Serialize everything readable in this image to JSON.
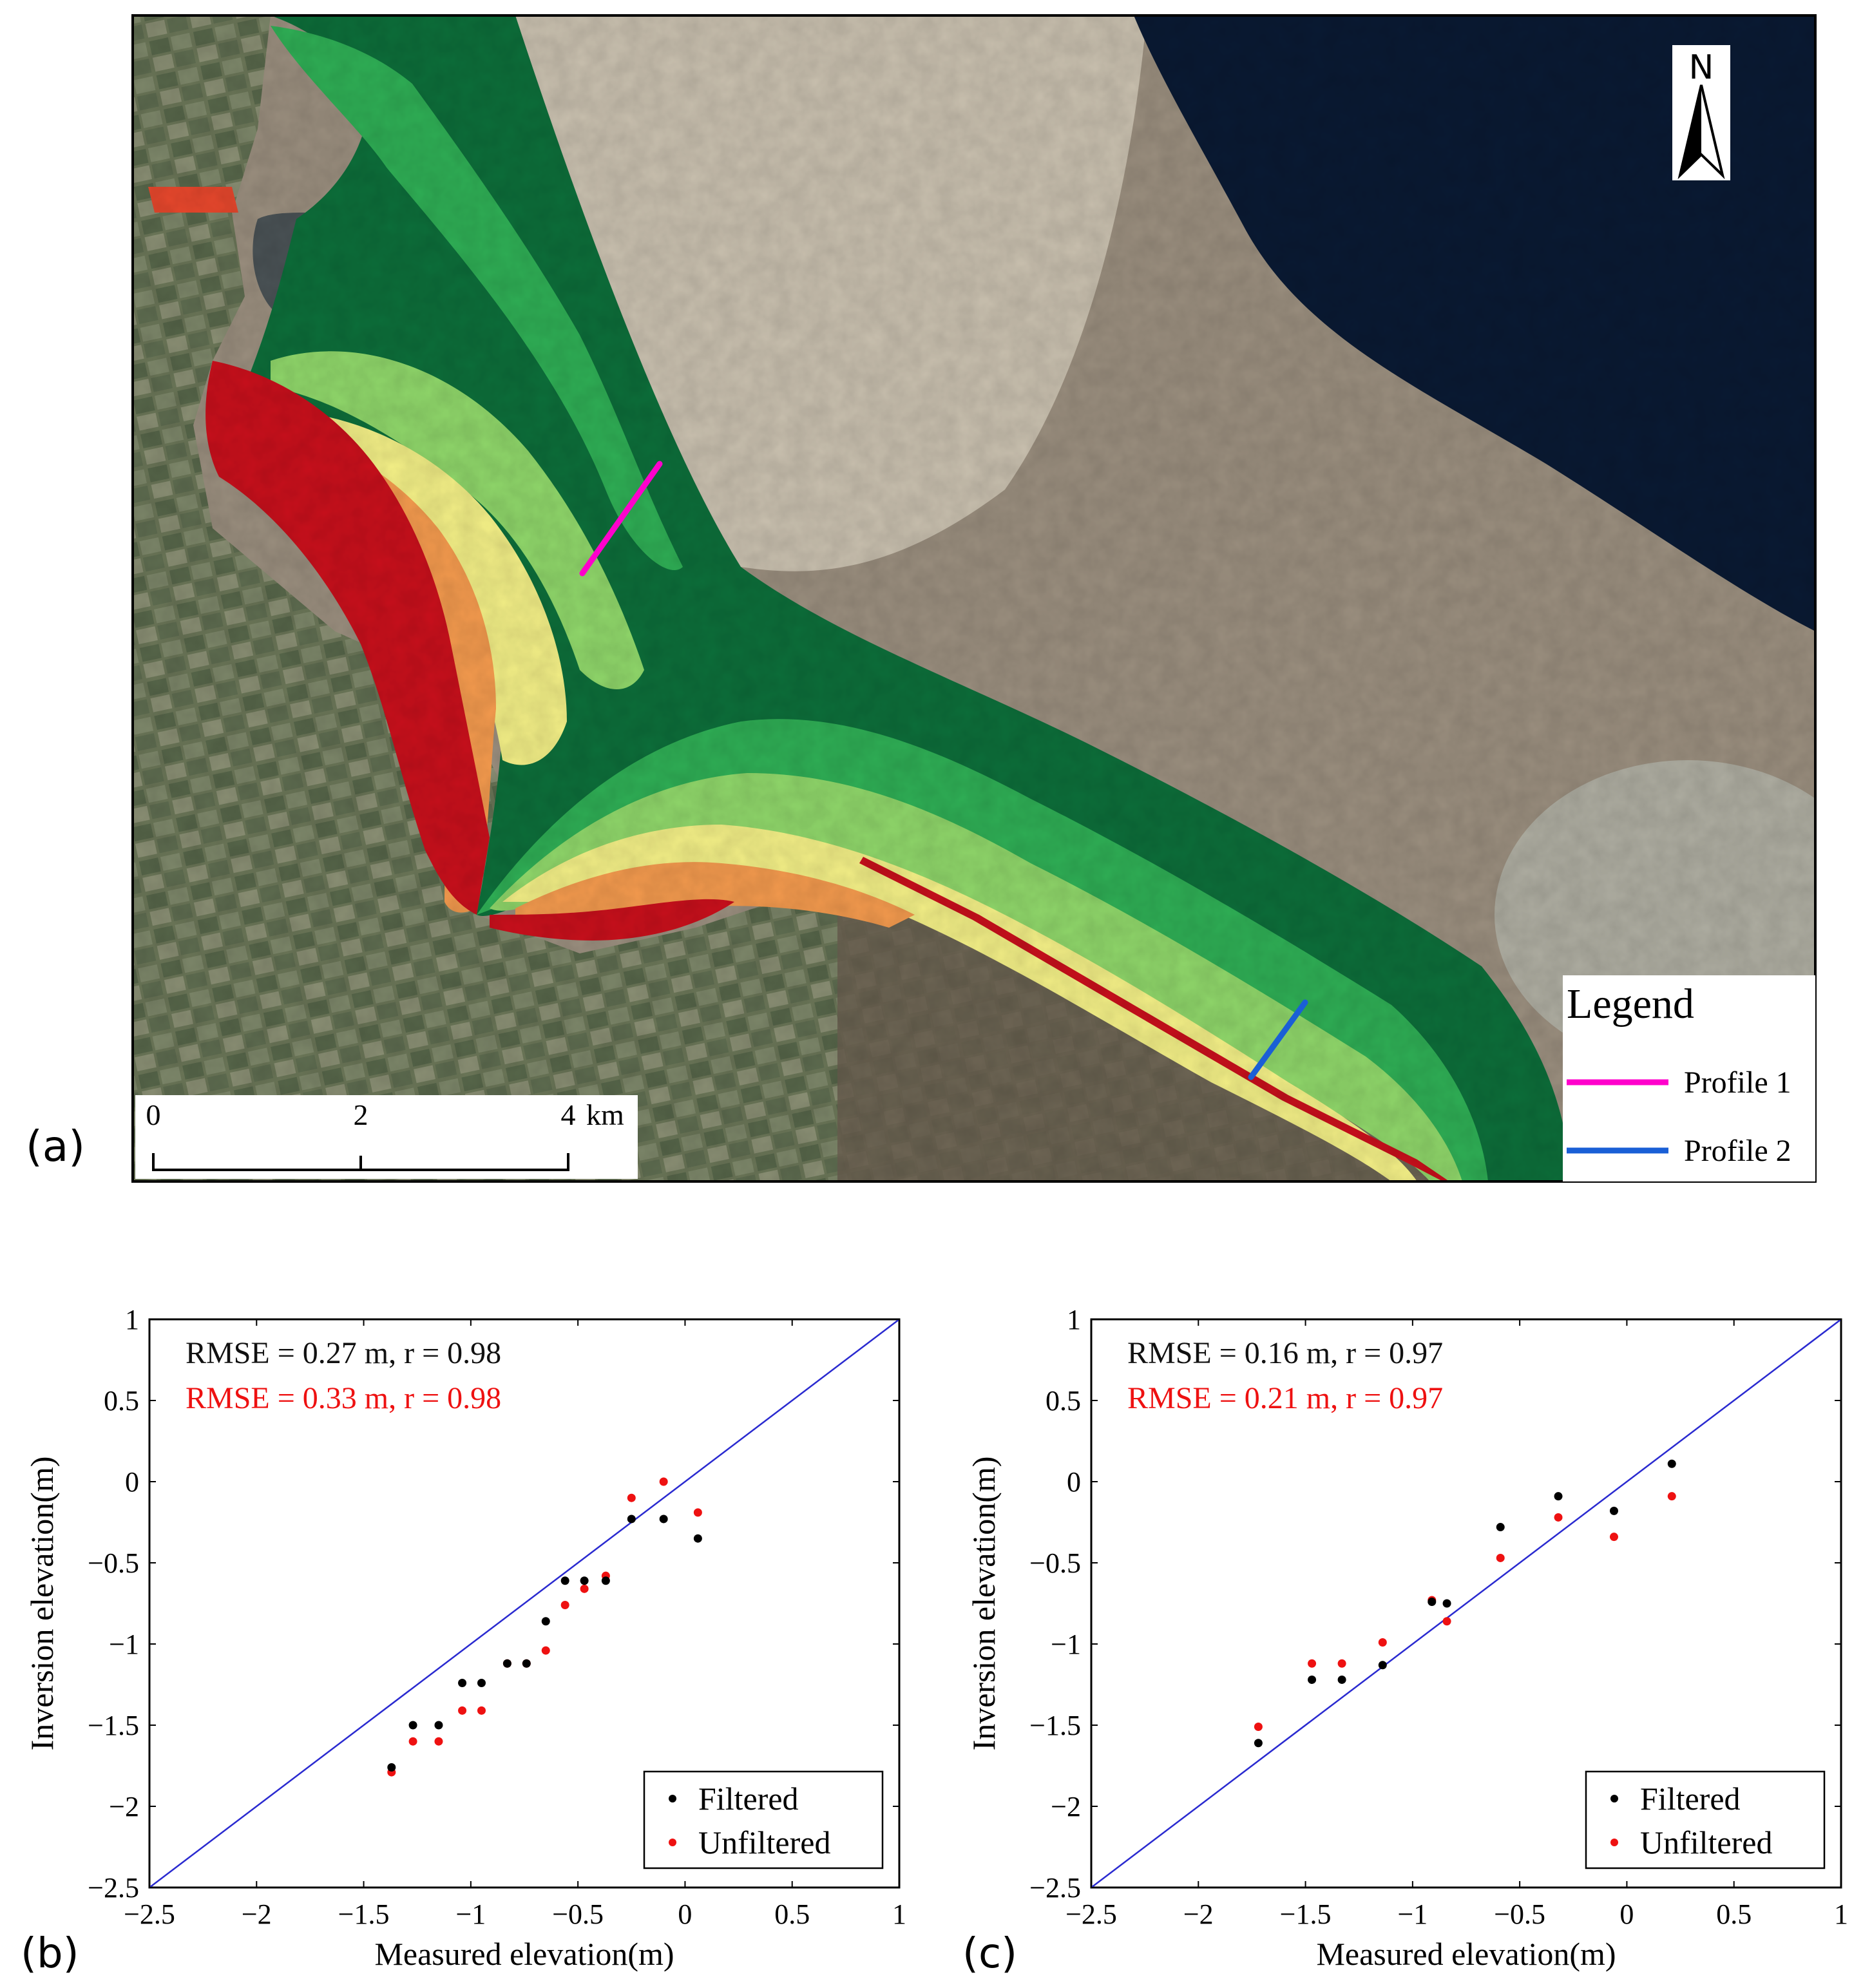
{
  "panel_a": {
    "label": "(a)",
    "north_arrow_letter": "N",
    "scale_bar": {
      "ticks": [
        "0",
        "2",
        "4"
      ],
      "unit": "km"
    },
    "legend": {
      "title": "Legend",
      "items": [
        {
          "label": "Profile 1",
          "color": "#ff00cc"
        },
        {
          "label": "Profile 2",
          "color": "#1a5fd6"
        }
      ]
    },
    "colors": {
      "sea_dark": "#0a1a33",
      "tidal_flat": "#c8bfae",
      "turbid_water": "#9a8e7e",
      "land": "#6f7a5c",
      "elev_dark_green": "#0d6e3a",
      "elev_green": "#2fae55",
      "elev_light_green": "#8fd66a",
      "elev_yellow": "#f2ee86",
      "elev_orange": "#f39a4e",
      "elev_red_orange": "#e8482d",
      "elev_red": "#c8101c"
    }
  },
  "chart_data": [
    {
      "panel_label": "(b)",
      "type": "scatter",
      "xlabel": "Measured elevation(m)",
      "ylabel": "Inversion elevation(m)",
      "xlim": [
        -2.5,
        1
      ],
      "ylim": [
        -2.5,
        1
      ],
      "xticks": [
        "−2.5",
        "−2",
        "−1.5",
        "−1",
        "−0.5",
        "0",
        "0.5",
        "1"
      ],
      "yticks": [
        "−2.5",
        "−2",
        "−1.5",
        "−1",
        "−0.5",
        "0",
        "0.5",
        "1"
      ],
      "reference_line": {
        "from": [
          -2.5,
          -2.5
        ],
        "to": [
          1,
          1
        ],
        "color": "#2a2ad0"
      },
      "annotations": [
        {
          "text": "RMSE = 0.27 m, r = 0.98",
          "color": "#111111"
        },
        {
          "text": "RMSE = 0.33 m, r = 0.98",
          "color": "#ee1111"
        }
      ],
      "legend": {
        "position": "bottom-right"
      },
      "series": [
        {
          "name": "Filtered",
          "color": "#000000",
          "points": [
            [
              -1.37,
              -1.76
            ],
            [
              -1.27,
              -1.5
            ],
            [
              -1.15,
              -1.5
            ],
            [
              -1.04,
              -1.24
            ],
            [
              -0.95,
              -1.24
            ],
            [
              -0.83,
              -1.12
            ],
            [
              -0.74,
              -1.12
            ],
            [
              -0.65,
              -0.86
            ],
            [
              -0.56,
              -0.61
            ],
            [
              -0.47,
              -0.61
            ],
            [
              -0.37,
              -0.61
            ],
            [
              -0.25,
              -0.23
            ],
            [
              -0.1,
              -0.23
            ],
            [
              0.06,
              -0.35
            ]
          ]
        },
        {
          "name": "Unfiltered",
          "color": "#ee1111",
          "points": [
            [
              -1.37,
              -1.79
            ],
            [
              -1.27,
              -1.6
            ],
            [
              -1.15,
              -1.6
            ],
            [
              -1.04,
              -1.41
            ],
            [
              -0.95,
              -1.41
            ],
            [
              -0.83,
              -1.12
            ],
            [
              -0.74,
              -1.12
            ],
            [
              -0.65,
              -1.04
            ],
            [
              -0.56,
              -0.76
            ],
            [
              -0.47,
              -0.66
            ],
            [
              -0.37,
              -0.58
            ],
            [
              -0.25,
              -0.1
            ],
            [
              -0.1,
              0.0
            ],
            [
              0.06,
              -0.19
            ]
          ]
        }
      ]
    },
    {
      "panel_label": "(c)",
      "type": "scatter",
      "xlabel": "Measured elevation(m)",
      "ylabel": "Inversion elevation(m)",
      "xlim": [
        -2.5,
        1
      ],
      "ylim": [
        -2.5,
        1
      ],
      "xticks": [
        "−2.5",
        "−2",
        "−1.5",
        "−1",
        "−0.5",
        "0",
        "0.5",
        "1"
      ],
      "yticks": [
        "−2.5",
        "−2",
        "−1.5",
        "−1",
        "−0.5",
        "0",
        "0.5",
        "1"
      ],
      "reference_line": {
        "from": [
          -2.5,
          -2.5
        ],
        "to": [
          1,
          1
        ],
        "color": "#2a2ad0"
      },
      "annotations": [
        {
          "text": "RMSE = 0.16 m, r = 0.97",
          "color": "#111111"
        },
        {
          "text": "RMSE = 0.21 m, r = 0.97",
          "color": "#ee1111"
        }
      ],
      "legend": {
        "position": "bottom-right"
      },
      "series": [
        {
          "name": "Filtered",
          "color": "#000000",
          "points": [
            [
              -1.72,
              -1.61
            ],
            [
              -1.47,
              -1.22
            ],
            [
              -1.33,
              -1.22
            ],
            [
              -1.14,
              -1.13
            ],
            [
              -0.91,
              -0.74
            ],
            [
              -0.84,
              -0.75
            ],
            [
              -0.59,
              -0.28
            ],
            [
              -0.32,
              -0.09
            ],
            [
              -0.06,
              -0.18
            ],
            [
              0.21,
              0.11
            ]
          ]
        },
        {
          "name": "Unfiltered",
          "color": "#ee1111",
          "points": [
            [
              -1.72,
              -1.51
            ],
            [
              -1.47,
              -1.12
            ],
            [
              -1.33,
              -1.12
            ],
            [
              -1.14,
              -0.99
            ],
            [
              -0.91,
              -0.73
            ],
            [
              -0.84,
              -0.86
            ],
            [
              -0.59,
              -0.47
            ],
            [
              -0.32,
              -0.22
            ],
            [
              -0.06,
              -0.34
            ],
            [
              0.21,
              -0.09
            ]
          ]
        }
      ]
    }
  ]
}
